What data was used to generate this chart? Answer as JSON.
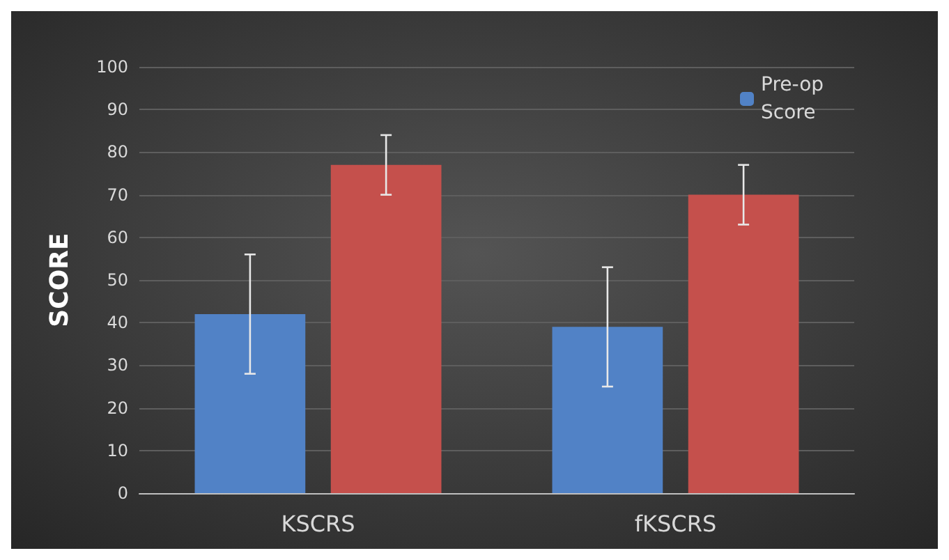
{
  "chart_data": {
    "type": "bar",
    "ylabel": "SCORE",
    "categories": [
      "KSCRS",
      "fKSCRS"
    ],
    "series": [
      {
        "name": "Pre-op Score",
        "color": "#5182c6",
        "values": [
          42,
          39
        ],
        "errors": [
          14,
          14
        ]
      },
      {
        "color": "#c5504c",
        "values": [
          77,
          70
        ],
        "errors": [
          7,
          7
        ]
      }
    ],
    "ylim": [
      0,
      100
    ],
    "yticks": [
      0,
      10,
      20,
      30,
      40,
      50,
      60,
      70,
      80,
      90,
      100
    ],
    "grid": "y",
    "legend": "top right"
  }
}
